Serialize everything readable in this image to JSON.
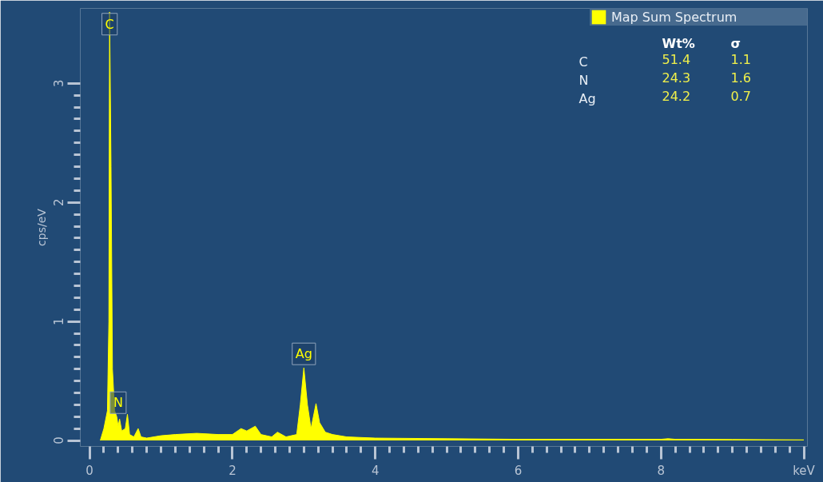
{
  "chart_data": {
    "type": "area",
    "ylabel": "cps/eV",
    "x": [
      0.15,
      0.2,
      0.25,
      0.27,
      0.28,
      0.3,
      0.32,
      0.35,
      0.38,
      0.4,
      0.42,
      0.45,
      0.5,
      0.53,
      0.56,
      0.62,
      0.68,
      0.72,
      0.8,
      1.0,
      1.2,
      1.5,
      1.8,
      2.0,
      2.12,
      2.2,
      2.32,
      2.4,
      2.55,
      2.63,
      2.75,
      2.9,
      2.95,
      3.0,
      3.05,
      3.1,
      3.17,
      3.22,
      3.3,
      3.4,
      3.6,
      4.0,
      5.0,
      6.0,
      7.0,
      8.0,
      8.1,
      8.2,
      9.0,
      10.0
    ],
    "series": [
      {
        "name": "Map Sum Spectrum",
        "color": "#ffff00",
        "values": [
          0,
          0.1,
          0.25,
          1.0,
          3.6,
          2.3,
          0.6,
          0.25,
          0.2,
          0.12,
          0.18,
          0.08,
          0.1,
          0.22,
          0.05,
          0.03,
          0.1,
          0.03,
          0.02,
          0.04,
          0.05,
          0.06,
          0.05,
          0.05,
          0.1,
          0.08,
          0.12,
          0.05,
          0.03,
          0.07,
          0.03,
          0.05,
          0.3,
          0.61,
          0.3,
          0.1,
          0.31,
          0.15,
          0.07,
          0.05,
          0.03,
          0.02,
          0.015,
          0.01,
          0.01,
          0.01,
          0.015,
          0.01,
          0.008,
          0.005
        ]
      }
    ],
    "xlim": [
      -0.13,
      10.05
    ],
    "ylim": [
      -0.05,
      3.63
    ],
    "xticks": [
      0,
      2,
      4,
      6,
      8,
      {
        "value": 10,
        "label": "keV"
      }
    ],
    "yticks": [
      0,
      1,
      2,
      3
    ],
    "grid": false,
    "legend": "top right",
    "annotations": [
      {
        "text": "C",
        "x": 0.28,
        "y": 3.38
      },
      {
        "text": "N",
        "x": 0.4,
        "y": 0.2
      },
      {
        "text": "Ag",
        "x": 3.0,
        "y": 0.61
      },
      "Wt%",
      "σ",
      "C",
      "51.4",
      "1.1",
      "N",
      "24.3",
      "1.6",
      "Ag",
      "24.2",
      "0.7"
    ]
  }
}
